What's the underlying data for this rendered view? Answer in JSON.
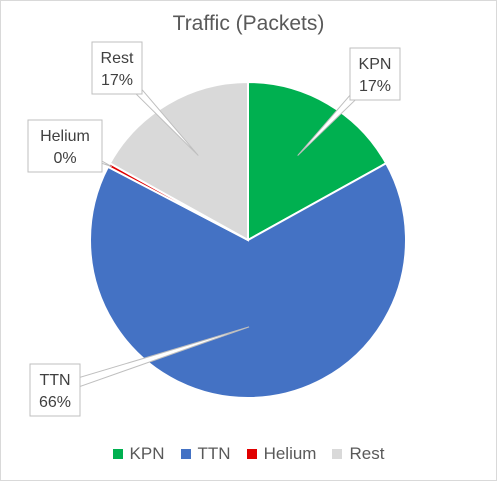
{
  "chart_data": {
    "type": "pie",
    "title": "Traffic (Packets)",
    "slices": [
      {
        "name": "KPN",
        "value": 17,
        "label": "17%",
        "color": "#00b050"
      },
      {
        "name": "TTN",
        "value": 66,
        "label": "66%",
        "color": "#4472c4"
      },
      {
        "name": "Helium",
        "value": 0.4,
        "label": "0%",
        "color": "#e00000"
      },
      {
        "name": "Rest",
        "value": 17,
        "label": "17%",
        "color": "#d9d9d9"
      }
    ],
    "legend_position": "bottom"
  }
}
